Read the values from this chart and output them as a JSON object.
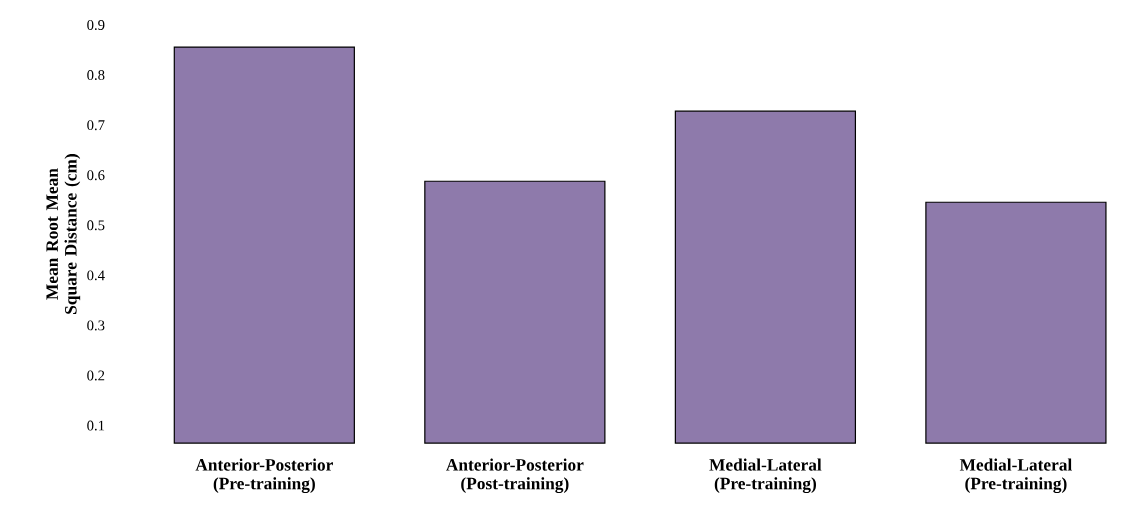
{
  "chart_data": {
    "type": "bar",
    "ylabel": "Mean Root Mean Square Distance (cm)",
    "categories": [
      "Anterior-Posterior (Pre-training)",
      "Anterior-Posterior (Post-training)",
      "Medial-Lateral (Pre-training)",
      "Medial-Lateral (Pre-training)"
    ],
    "values": [
      0.856,
      0.588,
      0.728,
      0.546
    ],
    "color": "#8e7aab",
    "ylim": [
      0.065,
      0.9
    ],
    "yticks": [
      0.1,
      0.2,
      0.3,
      0.4,
      0.5,
      0.6,
      0.7,
      0.8,
      0.9
    ]
  }
}
